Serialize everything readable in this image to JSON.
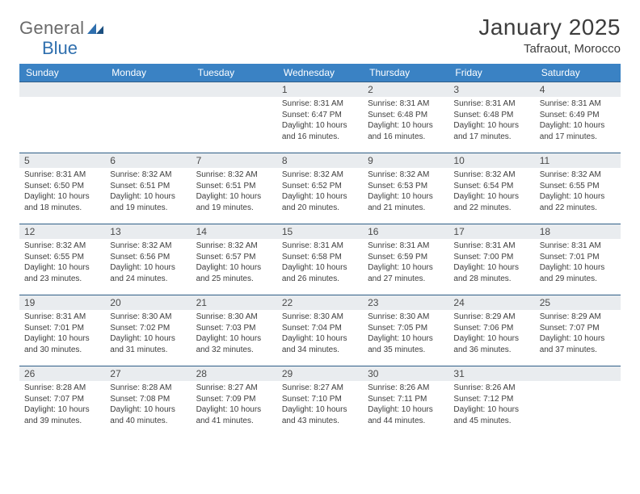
{
  "logo": {
    "word1": "General",
    "word2": "Blue"
  },
  "title": "January 2025",
  "location": "Tafraout, Morocco",
  "colors": {
    "header_bg": "#3a82c4",
    "header_text": "#ffffff",
    "daynum_bg": "#e9ecef",
    "daynum_border": "#2f5e87",
    "body_text": "#3d3d3d",
    "logo_gray": "#6a6a6a",
    "logo_blue": "#2f6fae",
    "page_bg": "#ffffff"
  },
  "weekdays": [
    "Sunday",
    "Monday",
    "Tuesday",
    "Wednesday",
    "Thursday",
    "Friday",
    "Saturday"
  ],
  "weeks": [
    [
      {
        "empty": true
      },
      {
        "empty": true
      },
      {
        "empty": true
      },
      {
        "day": "1",
        "sunrise": "8:31 AM",
        "sunset": "6:47 PM",
        "daylight": "10 hours and 16 minutes."
      },
      {
        "day": "2",
        "sunrise": "8:31 AM",
        "sunset": "6:48 PM",
        "daylight": "10 hours and 16 minutes."
      },
      {
        "day": "3",
        "sunrise": "8:31 AM",
        "sunset": "6:48 PM",
        "daylight": "10 hours and 17 minutes."
      },
      {
        "day": "4",
        "sunrise": "8:31 AM",
        "sunset": "6:49 PM",
        "daylight": "10 hours and 17 minutes."
      }
    ],
    [
      {
        "day": "5",
        "sunrise": "8:31 AM",
        "sunset": "6:50 PM",
        "daylight": "10 hours and 18 minutes."
      },
      {
        "day": "6",
        "sunrise": "8:32 AM",
        "sunset": "6:51 PM",
        "daylight": "10 hours and 19 minutes."
      },
      {
        "day": "7",
        "sunrise": "8:32 AM",
        "sunset": "6:51 PM",
        "daylight": "10 hours and 19 minutes."
      },
      {
        "day": "8",
        "sunrise": "8:32 AM",
        "sunset": "6:52 PM",
        "daylight": "10 hours and 20 minutes."
      },
      {
        "day": "9",
        "sunrise": "8:32 AM",
        "sunset": "6:53 PM",
        "daylight": "10 hours and 21 minutes."
      },
      {
        "day": "10",
        "sunrise": "8:32 AM",
        "sunset": "6:54 PM",
        "daylight": "10 hours and 22 minutes."
      },
      {
        "day": "11",
        "sunrise": "8:32 AM",
        "sunset": "6:55 PM",
        "daylight": "10 hours and 22 minutes."
      }
    ],
    [
      {
        "day": "12",
        "sunrise": "8:32 AM",
        "sunset": "6:55 PM",
        "daylight": "10 hours and 23 minutes."
      },
      {
        "day": "13",
        "sunrise": "8:32 AM",
        "sunset": "6:56 PM",
        "daylight": "10 hours and 24 minutes."
      },
      {
        "day": "14",
        "sunrise": "8:32 AM",
        "sunset": "6:57 PM",
        "daylight": "10 hours and 25 minutes."
      },
      {
        "day": "15",
        "sunrise": "8:31 AM",
        "sunset": "6:58 PM",
        "daylight": "10 hours and 26 minutes."
      },
      {
        "day": "16",
        "sunrise": "8:31 AM",
        "sunset": "6:59 PM",
        "daylight": "10 hours and 27 minutes."
      },
      {
        "day": "17",
        "sunrise": "8:31 AM",
        "sunset": "7:00 PM",
        "daylight": "10 hours and 28 minutes."
      },
      {
        "day": "18",
        "sunrise": "8:31 AM",
        "sunset": "7:01 PM",
        "daylight": "10 hours and 29 minutes."
      }
    ],
    [
      {
        "day": "19",
        "sunrise": "8:31 AM",
        "sunset": "7:01 PM",
        "daylight": "10 hours and 30 minutes."
      },
      {
        "day": "20",
        "sunrise": "8:30 AM",
        "sunset": "7:02 PM",
        "daylight": "10 hours and 31 minutes."
      },
      {
        "day": "21",
        "sunrise": "8:30 AM",
        "sunset": "7:03 PM",
        "daylight": "10 hours and 32 minutes."
      },
      {
        "day": "22",
        "sunrise": "8:30 AM",
        "sunset": "7:04 PM",
        "daylight": "10 hours and 34 minutes."
      },
      {
        "day": "23",
        "sunrise": "8:30 AM",
        "sunset": "7:05 PM",
        "daylight": "10 hours and 35 minutes."
      },
      {
        "day": "24",
        "sunrise": "8:29 AM",
        "sunset": "7:06 PM",
        "daylight": "10 hours and 36 minutes."
      },
      {
        "day": "25",
        "sunrise": "8:29 AM",
        "sunset": "7:07 PM",
        "daylight": "10 hours and 37 minutes."
      }
    ],
    [
      {
        "day": "26",
        "sunrise": "8:28 AM",
        "sunset": "7:07 PM",
        "daylight": "10 hours and 39 minutes."
      },
      {
        "day": "27",
        "sunrise": "8:28 AM",
        "sunset": "7:08 PM",
        "daylight": "10 hours and 40 minutes."
      },
      {
        "day": "28",
        "sunrise": "8:27 AM",
        "sunset": "7:09 PM",
        "daylight": "10 hours and 41 minutes."
      },
      {
        "day": "29",
        "sunrise": "8:27 AM",
        "sunset": "7:10 PM",
        "daylight": "10 hours and 43 minutes."
      },
      {
        "day": "30",
        "sunrise": "8:26 AM",
        "sunset": "7:11 PM",
        "daylight": "10 hours and 44 minutes."
      },
      {
        "day": "31",
        "sunrise": "8:26 AM",
        "sunset": "7:12 PM",
        "daylight": "10 hours and 45 minutes."
      },
      {
        "empty": true
      }
    ]
  ],
  "labels": {
    "sunrise_prefix": "Sunrise: ",
    "sunset_prefix": "Sunset: ",
    "daylight_prefix": "Daylight: "
  }
}
